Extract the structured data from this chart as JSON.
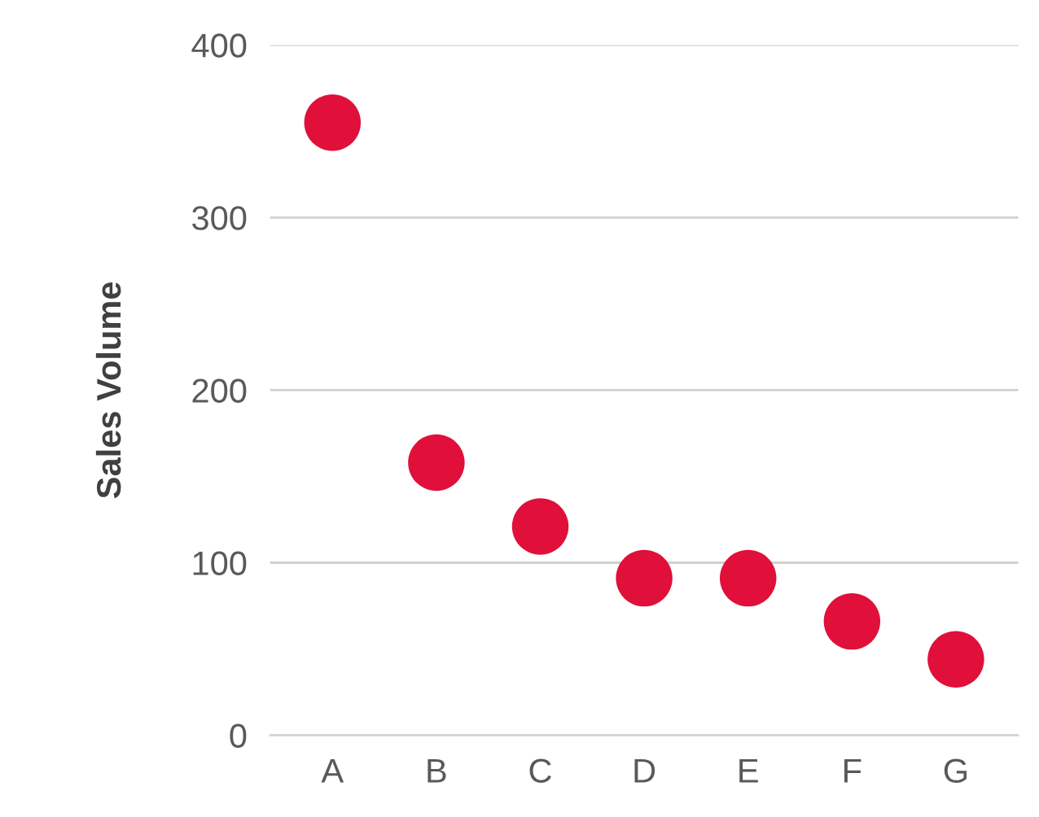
{
  "chart_data": {
    "type": "scatter",
    "ylabel": "Sales Volume",
    "categories": [
      "A",
      "B",
      "C",
      "D",
      "E",
      "F",
      "G"
    ],
    "values": [
      355,
      158,
      121,
      91,
      91,
      66,
      44
    ],
    "color": "#e0103a",
    "ylim": [
      0,
      400
    ],
    "yticks": [
      0,
      100,
      200,
      300,
      400
    ],
    "grid": "y",
    "marker": "circle"
  }
}
